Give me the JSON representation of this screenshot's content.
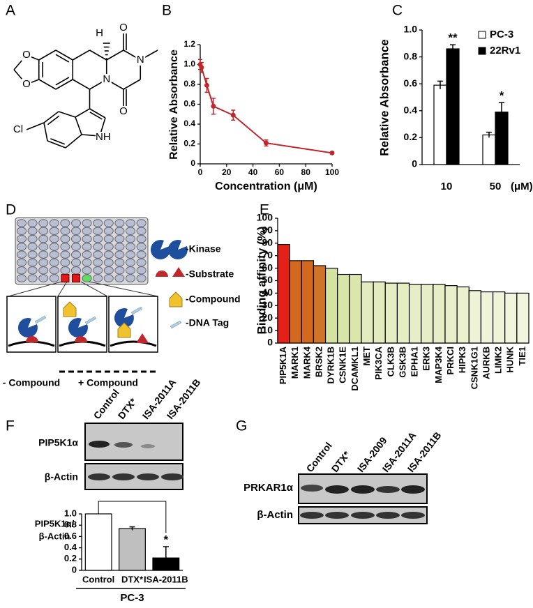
{
  "panel_labels": [
    "A",
    "B",
    "C",
    "D",
    "E",
    "F",
    "G"
  ],
  "structure": {
    "atoms": [
      "H",
      "O",
      "O",
      "N",
      "N",
      "O",
      "O",
      "Cl",
      "NH"
    ]
  },
  "chart_data": [
    {
      "type": "line",
      "y_label": "Relative Absorbance",
      "x_label": "Concentration (μM)",
      "x": [
        0,
        1,
        5,
        10,
        25,
        50,
        100
      ],
      "series": [
        {
          "color": "#c0272d",
          "values": [
            1.0,
            0.97,
            0.79,
            0.58,
            0.49,
            0.21,
            0.11
          ],
          "errors": [
            0.05,
            0.05,
            0.07,
            0.08,
            0.05,
            0.03,
            0.01
          ]
        }
      ],
      "xlim": [
        0,
        100
      ],
      "xticks": [
        0,
        20,
        40,
        60,
        80,
        100
      ],
      "ylim": [
        0,
        1.2
      ],
      "yticks": [
        0,
        0.2,
        0.4,
        0.6,
        0.8,
        {
          "value": 1,
          "label": "1.0"
        },
        1.2
      ]
    },
    {
      "type": "bar",
      "y_label": "Relative Absorbance",
      "categories": [
        "10",
        "50"
      ],
      "x_unit": "(μM)",
      "series": [
        {
          "name": "PC-3",
          "color": "#ffffff",
          "values": [
            0.59,
            0.22
          ],
          "errors": [
            0.03,
            0.02
          ]
        },
        {
          "name": "22Rv1",
          "color": "#000000",
          "values": [
            0.86,
            0.39
          ],
          "errors": [
            0.03,
            0.07
          ]
        }
      ],
      "annotations": [
        "**",
        "*"
      ],
      "ylim": [
        0,
        1
      ],
      "yticks": [
        0,
        0.2,
        0.4,
        0.6,
        0.8,
        {
          "value": 1,
          "label": "1.0"
        }
      ]
    },
    {
      "type": "bar",
      "y_label": "Binding affinity (%)",
      "categories": [
        "PIP5K1A",
        "MARK1",
        "MARK4",
        "BRSK2",
        "DYRK1B",
        "CSNK1E",
        "DCAMKL1",
        "MET",
        "PIK3CA",
        "CLK3B",
        "GSK3B",
        "EPHA1",
        "ERK3",
        "MAP3K4",
        "PRKCI",
        "HIPK3",
        "CSNK1G1",
        "AURKB",
        "LIMK2",
        "HUNK",
        "TIE1"
      ],
      "values": [
        79,
        66,
        66,
        62,
        60,
        55,
        55,
        49,
        49,
        48,
        48,
        47,
        47,
        47,
        46,
        45,
        42,
        41,
        41,
        40,
        40
      ],
      "colors": [
        "#e32119",
        "#d2691e",
        "#d2691e",
        "#d0742a",
        "#d5e3a0",
        "#d8e5a8",
        "#dae6ac",
        "#e3ecbf",
        "#e3ecbf",
        "#e5edc3",
        "#e5edc3",
        "#e7eec7",
        "#e7eec7",
        "#e7eec7",
        "#e9efcb",
        "#ebf1cf",
        "#eef3d6",
        "#eff4d9",
        "#eff4d9",
        "#f1f5dd",
        "#f1f5dd"
      ],
      "ylim": [
        0,
        100
      ],
      "yticks": [
        0,
        10,
        20,
        30,
        40,
        50,
        60,
        70,
        80,
        90,
        100
      ]
    },
    {
      "type": "bar",
      "y_label": [
        "PIP5K1α/",
        "β-Actin"
      ],
      "categories": [
        "Control",
        "DTX*",
        "ISA-2011B"
      ],
      "values": [
        1.0,
        0.74,
        0.22
      ],
      "errors": [
        null,
        0.03,
        0.2
      ],
      "colors": [
        "#ffffff",
        "#bfbfbf",
        "#000000"
      ],
      "annotations": [
        null,
        null,
        "*"
      ],
      "group_label": "PC-3",
      "ylim": [
        0,
        1
      ],
      "yticks": [
        0,
        0.2,
        0.4,
        0.6,
        0.8,
        {
          "value": 1,
          "label": "1.0"
        }
      ]
    }
  ],
  "assay": {
    "legend": [
      "-Kinase",
      "-Substrate",
      "-Compound",
      "-DNA Tag"
    ],
    "groups": [
      "- Compound",
      "+ Compound"
    ]
  },
  "blot_f": {
    "lanes": [
      "Control",
      "DTX*",
      "ISA-2011A",
      "ISA-2011B"
    ],
    "rows": [
      "PIP5K1α",
      "β-Actin"
    ]
  },
  "blot_g": {
    "lanes": [
      "Control",
      "DTX*",
      "ISA-2009",
      "ISA-2011A",
      "ISA-2011B"
    ],
    "rows": [
      "PRKAR1α",
      "β-Actin"
    ]
  }
}
